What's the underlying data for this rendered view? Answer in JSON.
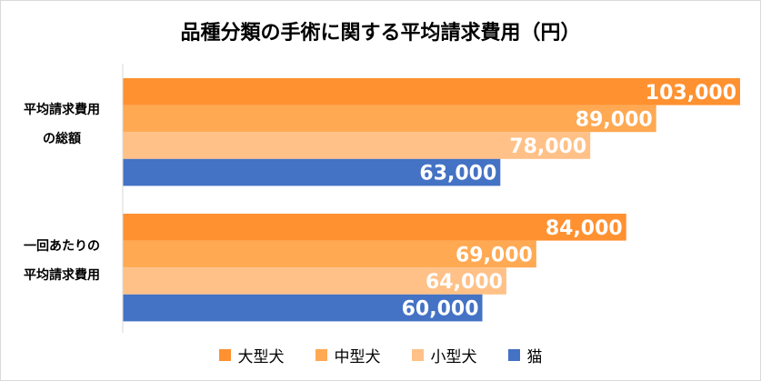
{
  "chart_data": {
    "type": "bar",
    "orientation": "horizontal",
    "title": "品種分類の手術に関する平均請求費用（円）",
    "categories": [
      {
        "line1": "平均請求費用",
        "line2": "の総額"
      },
      {
        "line1": "一回あたりの",
        "line2": "平均請求費用"
      }
    ],
    "series": [
      {
        "name": "大型犬",
        "color": "#FF9130",
        "values": [
          103000,
          84000
        ],
        "labels": [
          "103,000",
          "84,000"
        ]
      },
      {
        "name": "中型犬",
        "color": "#FFA953",
        "values": [
          89000,
          69000
        ],
        "labels": [
          "89,000",
          "69,000"
        ]
      },
      {
        "name": "小型犬",
        "color": "#FFC187",
        "values": [
          78000,
          64000
        ],
        "labels": [
          "78,000",
          "64,000"
        ]
      },
      {
        "name": "猫",
        "color": "#4472C4",
        "values": [
          63000,
          60000
        ],
        "labels": [
          "63,000",
          "60,000"
        ]
      }
    ],
    "xlim": [
      0,
      103000
    ],
    "grid": false,
    "legend_position": "bottom"
  }
}
